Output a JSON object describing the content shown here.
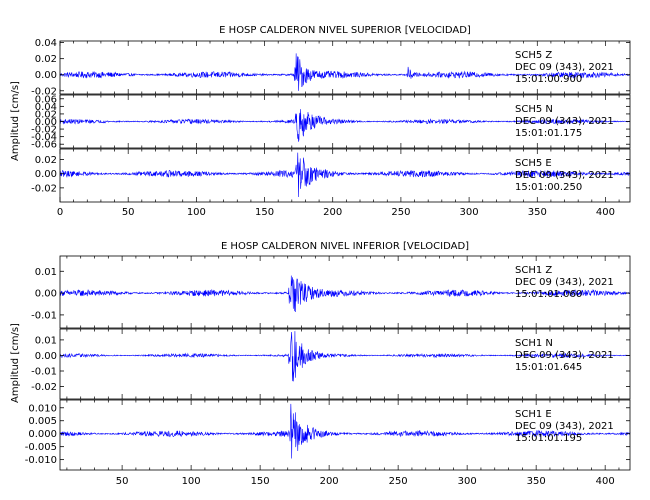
{
  "chart_data": [
    {
      "type": "line",
      "title": "E HOSP CALDERON NIVEL SUPERIOR [VELOCIDAD]",
      "ylabel": "Amplitud [cm/s]",
      "xlabel": "",
      "xlim": [
        0,
        418
      ],
      "x_ticks": [
        "0",
        "50",
        "100",
        "150",
        "200",
        "250",
        "300",
        "350",
        "400"
      ],
      "series_color": "#0000ff",
      "panels": [
        {
          "channel": "SCH5 Z",
          "date": "DEC 09 (343), 2021",
          "time": "15:01:00.900",
          "ylim": [
            -0.024,
            0.042
          ],
          "y_ticks": [
            "0.04",
            "0.02",
            "0.00",
            "-0.02"
          ],
          "noise_amp": 0.004,
          "events": [
            {
              "t": 173,
              "peak": 0.03,
              "decay": 6
            },
            {
              "t": 255,
              "peak": 0.01,
              "decay": 3
            }
          ]
        },
        {
          "channel": "SCH5 N",
          "date": "DEC 09 (343), 2021",
          "time": "15:01:01.175",
          "ylim": [
            -0.07,
            0.07
          ],
          "y_ticks": [
            "0.06",
            "0.04",
            "0.02",
            "0.00",
            "-0.02",
            "-0.04",
            "-0.06"
          ],
          "noise_amp": 0.006,
          "events": [
            {
              "t": 174,
              "peak": 0.06,
              "decay": 8
            }
          ]
        },
        {
          "channel": "SCH5 E",
          "date": "DEC 09 (343), 2021",
          "time": "15:01:00.250",
          "ylim": [
            -0.04,
            0.035
          ],
          "y_ticks": [
            "0.02",
            "0.00",
            "-0.02"
          ],
          "noise_amp": 0.005,
          "events": [
            {
              "t": 174,
              "peak": 0.032,
              "decay": 9
            }
          ]
        }
      ]
    },
    {
      "type": "line",
      "title": "E HOSP CALDERON NIVEL INFERIOR [VELOCIDAD]",
      "ylabel": "Amplitud [cm/s]",
      "xlabel": "",
      "xlim": [
        5,
        418
      ],
      "x_ticks": [
        "50",
        "100",
        "150",
        "200",
        "250",
        "300",
        "350",
        "400"
      ],
      "series_color": "#0000ff",
      "panels": [
        {
          "channel": "SCH1 Z",
          "date": "DEC 09 (343), 2021",
          "time": "15:01:01.060",
          "ylim": [
            -0.016,
            0.017
          ],
          "y_ticks": [
            "0.01",
            "0.00",
            "-0.01"
          ],
          "noise_amp": 0.0015,
          "events": [
            {
              "t": 172,
              "peak": 0.016,
              "decay": 7
            }
          ]
        },
        {
          "channel": "SCH1 N",
          "date": "DEC 09 (343), 2021",
          "time": "15:01:01.645",
          "ylim": [
            -0.028,
            0.017
          ],
          "y_ticks": [
            "0.01",
            "0.00",
            "-0.01",
            "-0.02"
          ],
          "noise_amp": 0.0012,
          "events": [
            {
              "t": 172,
              "peak": 0.024,
              "decay": 7
            }
          ]
        },
        {
          "channel": "SCH1 E",
          "date": "DEC 09 (343), 2021",
          "time": "15:01:01.195",
          "ylim": [
            -0.014,
            0.013
          ],
          "y_ticks": [
            "0.010",
            "0.005",
            "0.000",
            "-0.005",
            "-0.010"
          ],
          "noise_amp": 0.0012,
          "events": [
            {
              "t": 172,
              "peak": 0.011,
              "decay": 8
            }
          ]
        }
      ]
    }
  ]
}
